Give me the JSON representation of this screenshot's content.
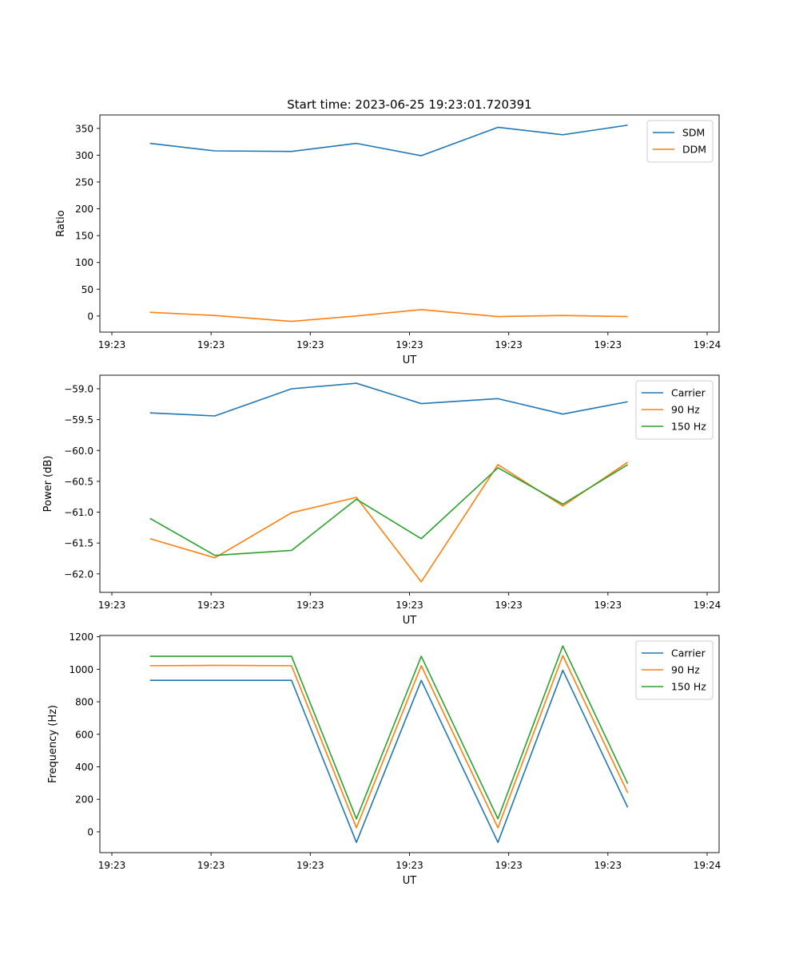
{
  "figure": {
    "title": "Start time: 2023-06-25 19:23:01.720391"
  },
  "chart_data": [
    {
      "type": "line",
      "title": "Start time: 2023-06-25 19:23:01.720391",
      "xlabel": "UT",
      "ylabel": "Ratio",
      "x_tick_labels": [
        "19:23",
        "19:23",
        "19:23",
        "19:23",
        "19:23",
        "19:23",
        "19:24"
      ],
      "xlim": [
        -0.5,
        20.5
      ],
      "x": [
        1.2,
        3.4,
        6.0,
        8.2,
        10.4,
        13.0,
        15.2,
        17.4
      ],
      "ylim": [
        -30,
        375
      ],
      "y_ticks": [
        0,
        50,
        100,
        150,
        200,
        250,
        300,
        350
      ],
      "grid": false,
      "legend": "upper right",
      "series": [
        {
          "name": "SDM",
          "color": "#1f77b4",
          "values": [
            322,
            308,
            307,
            322,
            299,
            352,
            338,
            356
          ]
        },
        {
          "name": "DDM",
          "color": "#ff7f0e",
          "values": [
            7,
            1,
            -10,
            0,
            12,
            -1,
            1,
            -1
          ]
        }
      ]
    },
    {
      "type": "line",
      "title": "",
      "xlabel": "UT",
      "ylabel": "Power (dB)",
      "x_tick_labels": [
        "19:23",
        "19:23",
        "19:23",
        "19:23",
        "19:23",
        "19:23",
        "19:24"
      ],
      "xlim": [
        -0.5,
        20.5
      ],
      "x": [
        1.2,
        3.4,
        6.0,
        8.2,
        10.4,
        13.0,
        15.2,
        17.4
      ],
      "ylim": [
        -62.3,
        -58.78
      ],
      "y_ticks": [
        -62.0,
        -61.5,
        -61.0,
        -60.5,
        -60.0,
        -59.5,
        -59.0
      ],
      "y_tick_format": "0.1",
      "grid": false,
      "legend": "upper right",
      "series": [
        {
          "name": "Carrier",
          "color": "#1f77b4",
          "values": [
            -59.39,
            -59.44,
            -59.0,
            -58.91,
            -59.24,
            -59.16,
            -59.41,
            -59.21
          ]
        },
        {
          "name": "90 Hz",
          "color": "#ff7f0e",
          "values": [
            -61.43,
            -61.74,
            -61.01,
            -60.76,
            -62.13,
            -60.23,
            -60.9,
            -60.19
          ]
        },
        {
          "name": "150 Hz",
          "color": "#2ca02c",
          "values": [
            -61.1,
            -61.7,
            -61.62,
            -60.79,
            -61.43,
            -60.28,
            -60.87,
            -60.23
          ]
        }
      ]
    },
    {
      "type": "line",
      "title": "",
      "xlabel": "UT",
      "ylabel": "Frequency (Hz)",
      "x_tick_labels": [
        "19:23",
        "19:23",
        "19:23",
        "19:23",
        "19:23",
        "19:23",
        "19:24"
      ],
      "xlim": [
        -0.5,
        20.5
      ],
      "x": [
        1.2,
        3.4,
        6.0,
        8.2,
        10.4,
        13.0,
        15.2,
        17.4
      ],
      "ylim": [
        -128,
        1208
      ],
      "y_ticks": [
        0,
        200,
        400,
        600,
        800,
        1000,
        1200
      ],
      "grid": false,
      "legend": "upper right",
      "series": [
        {
          "name": "Carrier",
          "color": "#1f77b4",
          "values": [
            932,
            932,
            932,
            -65,
            932,
            -65,
            994,
            150
          ]
        },
        {
          "name": "90 Hz",
          "color": "#ff7f0e",
          "values": [
            1022,
            1024,
            1022,
            25,
            1022,
            25,
            1084,
            240
          ]
        },
        {
          "name": "150 Hz",
          "color": "#2ca02c",
          "values": [
            1080,
            1080,
            1080,
            80,
            1080,
            80,
            1144,
            296
          ]
        }
      ]
    }
  ]
}
